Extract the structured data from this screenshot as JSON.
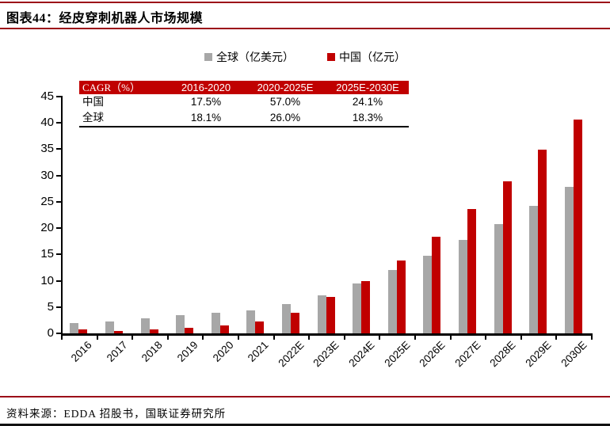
{
  "header": {
    "title": "图表44：经皮穿刺机器人市场规模"
  },
  "legend": {
    "items": [
      {
        "label": "全球（亿美元）",
        "color": "#a7a7a7"
      },
      {
        "label": "中国（亿元）",
        "color": "#c00000"
      }
    ]
  },
  "cagr_table": {
    "headers": [
      "CAGR（%）",
      "2016-2020",
      "2020-2025E",
      "2025E-2030E"
    ],
    "rows": [
      {
        "label": "中国",
        "values": [
          "17.5%",
          "57.0%",
          "24.1%"
        ]
      },
      {
        "label": "全球",
        "values": [
          "18.1%",
          "26.0%",
          "18.3%"
        ]
      }
    ]
  },
  "chart_data": {
    "type": "bar",
    "categories": [
      "2016",
      "2017",
      "2018",
      "2019",
      "2020",
      "2021",
      "2022E",
      "2023E",
      "2024E",
      "2025E",
      "2026E",
      "2027E",
      "2028E",
      "2029E",
      "2030E"
    ],
    "series": [
      {
        "name": "全球（亿美元）",
        "color": "#a7a7a7",
        "values": [
          2.0,
          2.3,
          2.8,
          3.5,
          3.9,
          4.4,
          5.5,
          7.2,
          9.5,
          12.0,
          14.8,
          17.7,
          20.8,
          24.2,
          27.9
        ]
      },
      {
        "name": "中国（亿元）",
        "color": "#c00000",
        "values": [
          0.8,
          0.5,
          0.7,
          1.0,
          1.5,
          2.3,
          3.9,
          6.9,
          10.0,
          13.9,
          18.4,
          23.6,
          28.9,
          34.9,
          40.6
        ]
      }
    ],
    "title": "经皮穿刺机器人市场规模",
    "xlabel": "",
    "ylabel": "",
    "ylim": [
      0,
      45
    ],
    "ytick_step": 5,
    "grid": false,
    "legend_position": "top"
  },
  "footer": {
    "source": "资料来源：EDDA 招股书，国联证券研究所"
  },
  "colors": {
    "accent_red": "#c00000",
    "rule_red": "#9c0a18",
    "bar_gray": "#a7a7a7",
    "axis": "#000000"
  }
}
